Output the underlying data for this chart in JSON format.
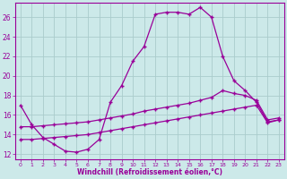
{
  "xlabel": "Windchill (Refroidissement éolien,°C)",
  "xlim": [
    -0.5,
    23.5
  ],
  "ylim": [
    11.5,
    27.5
  ],
  "yticks": [
    12,
    14,
    16,
    18,
    20,
    22,
    24,
    26
  ],
  "xticks": [
    0,
    1,
    2,
    3,
    4,
    5,
    6,
    7,
    8,
    9,
    10,
    11,
    12,
    13,
    14,
    15,
    16,
    17,
    18,
    19,
    20,
    21,
    22,
    23
  ],
  "bg_color": "#cce9e9",
  "line_color": "#990099",
  "grid_color": "#aacccc",
  "lines": [
    {
      "x": [
        0,
        1,
        2,
        3,
        4,
        5,
        6,
        7,
        8,
        9,
        10,
        11,
        12,
        13,
        14,
        15,
        16,
        17,
        18,
        19,
        20,
        21,
        22,
        23
      ],
      "y": [
        17.0,
        15.0,
        13.7,
        13.0,
        12.3,
        12.2,
        12.5,
        13.5,
        17.3,
        19.0,
        21.5,
        23.0,
        26.3,
        26.5,
        26.5,
        26.3,
        27.0,
        26.0,
        22.0,
        19.5,
        18.5,
        17.3,
        15.3,
        15.5
      ]
    },
    {
      "x": [
        0,
        1,
        2,
        3,
        4,
        5,
        6,
        7,
        8,
        9,
        10,
        11,
        12,
        13,
        14,
        15,
        16,
        17,
        18,
        19,
        20,
        21,
        22,
        23
      ],
      "y": [
        14.8,
        14.8,
        14.9,
        15.0,
        15.1,
        15.2,
        15.3,
        15.5,
        15.7,
        15.9,
        16.1,
        16.4,
        16.6,
        16.8,
        17.0,
        17.2,
        17.5,
        17.8,
        18.5,
        18.2,
        18.0,
        17.5,
        15.5,
        15.7
      ]
    },
    {
      "x": [
        0,
        1,
        2,
        3,
        4,
        5,
        6,
        7,
        8,
        9,
        10,
        11,
        12,
        13,
        14,
        15,
        16,
        17,
        18,
        19,
        20,
        21,
        22,
        23
      ],
      "y": [
        13.5,
        13.5,
        13.6,
        13.7,
        13.8,
        13.9,
        14.0,
        14.2,
        14.4,
        14.6,
        14.8,
        15.0,
        15.2,
        15.4,
        15.6,
        15.8,
        16.0,
        16.2,
        16.4,
        16.6,
        16.8,
        17.0,
        15.2,
        15.5
      ]
    }
  ]
}
